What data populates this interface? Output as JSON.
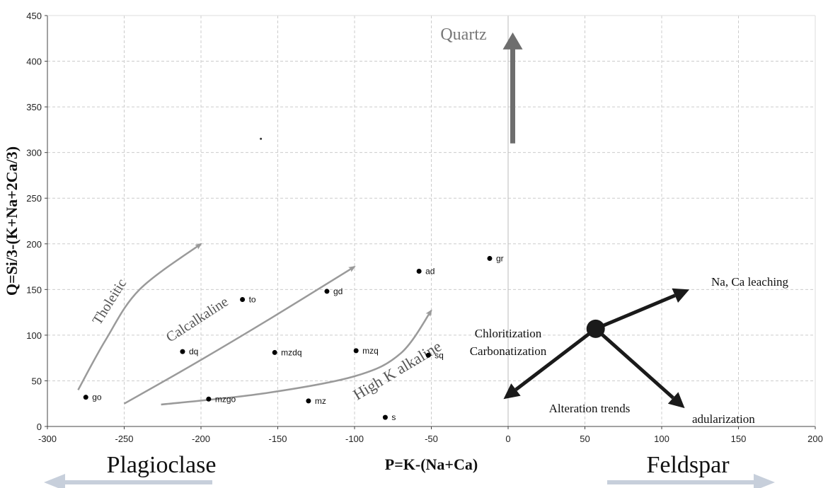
{
  "chart_data": {
    "type": "scatter",
    "xlabel": "P=K-(Na+Ca)",
    "ylabel": "Q=Si/3-(K+Na+2Ca/3)",
    "xlim": [
      -300,
      200
    ],
    "ylim": [
      0,
      450
    ],
    "xticks": [
      -300,
      -250,
      -200,
      -150,
      -100,
      -50,
      0,
      50,
      100,
      150,
      200
    ],
    "yticks": [
      0,
      50,
      100,
      150,
      200,
      250,
      300,
      350,
      400,
      450
    ],
    "grid": true,
    "points": [
      {
        "label": "go",
        "x": -275,
        "y": 32
      },
      {
        "label": "dq",
        "x": -212,
        "y": 82
      },
      {
        "label": "to",
        "x": -173,
        "y": 139
      },
      {
        "label": "mzgo",
        "x": -195,
        "y": 30
      },
      {
        "label": "mzdq",
        "x": -152,
        "y": 81
      },
      {
        "label": "gd",
        "x": -118,
        "y": 148
      },
      {
        "label": "mz",
        "x": -130,
        "y": 28
      },
      {
        "label": "mzq",
        "x": -99,
        "y": 83
      },
      {
        "label": "s",
        "x": -80,
        "y": 10
      },
      {
        "label": "ad",
        "x": -58,
        "y": 170
      },
      {
        "label": "sq",
        "x": -52,
        "y": 78
      },
      {
        "label": "gr",
        "x": -12,
        "y": 184
      }
    ],
    "stray_dot": {
      "x": -161,
      "y": 315
    },
    "trend_curves": [
      {
        "label": "Tholeitic",
        "points": [
          [
            -280,
            40
          ],
          [
            -262,
            95
          ],
          [
            -240,
            150
          ],
          [
            -200,
            200
          ]
        ]
      },
      {
        "label": "Calcalkaline",
        "points": [
          [
            -250,
            25
          ],
          [
            -205,
            68
          ],
          [
            -155,
            118
          ],
          [
            -100,
            175
          ]
        ]
      },
      {
        "label": "High K alkaline",
        "points": [
          [
            -226,
            24
          ],
          [
            -160,
            36
          ],
          [
            -100,
            55
          ],
          [
            -70,
            80
          ],
          [
            -50,
            127
          ]
        ]
      }
    ],
    "quartz_arrow": {
      "label": "Quartz",
      "from": [
        3,
        310
      ],
      "to": [
        3,
        430
      ]
    },
    "alteration": {
      "center": [
        57,
        107
      ],
      "title": "Alteration trends",
      "center_label": "Chloritization",
      "center_label_2": "Carbonatization",
      "vectors": [
        {
          "label": "Na, Ca leaching",
          "to": [
            118,
            150
          ]
        },
        {
          "label": "adularization",
          "to": [
            115,
            20
          ]
        },
        {
          "label": "",
          "to": [
            -3,
            30
          ]
        }
      ]
    },
    "bottom_labels": {
      "left": "Plagioclase",
      "right": "Feldspar"
    }
  },
  "colors": {
    "grid": "#cccccc",
    "trend": "#9a9a9a",
    "quartz": "#6e6e6e",
    "alteration": "#1a1a1a",
    "bottom_arrow": "#c7cfdb"
  }
}
